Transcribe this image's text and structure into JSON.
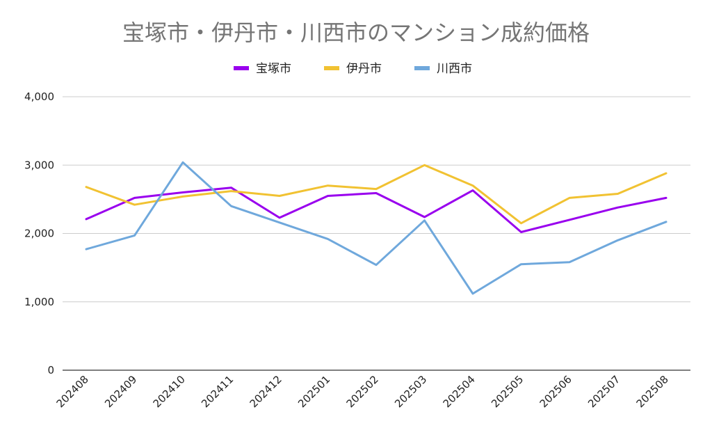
{
  "chart_data": {
    "type": "line",
    "title": "宝塚市・伊丹市・川西市のマンション成約価格",
    "xlabel": "",
    "ylabel": "",
    "categories": [
      "202408",
      "202409",
      "202410",
      "202411",
      "202412",
      "202501",
      "202502",
      "202503",
      "202504",
      "202505",
      "202506",
      "202507",
      "202508"
    ],
    "ylim": [
      0,
      4000
    ],
    "yticks": [
      0,
      1000,
      2000,
      3000,
      4000
    ],
    "ytick_labels": [
      "0",
      "1,000",
      "2,000",
      "3,000",
      "4,000"
    ],
    "legend_position": "top-center",
    "grid": true,
    "series": [
      {
        "name": "宝塚市",
        "color": "#9900ee",
        "values": [
          2210,
          2520,
          2600,
          2670,
          2230,
          2550,
          2590,
          2240,
          2630,
          2020,
          2200,
          2380,
          2520
        ]
      },
      {
        "name": "伊丹市",
        "color": "#f1c232",
        "values": [
          2680,
          2420,
          2540,
          2620,
          2550,
          2700,
          2650,
          3000,
          2700,
          2150,
          2520,
          2580,
          2880
        ]
      },
      {
        "name": "川西市",
        "color": "#6fa8dc",
        "values": [
          1770,
          1970,
          3040,
          2400,
          2160,
          1920,
          1540,
          2190,
          1120,
          1550,
          1580,
          1900,
          2170
        ]
      }
    ]
  }
}
